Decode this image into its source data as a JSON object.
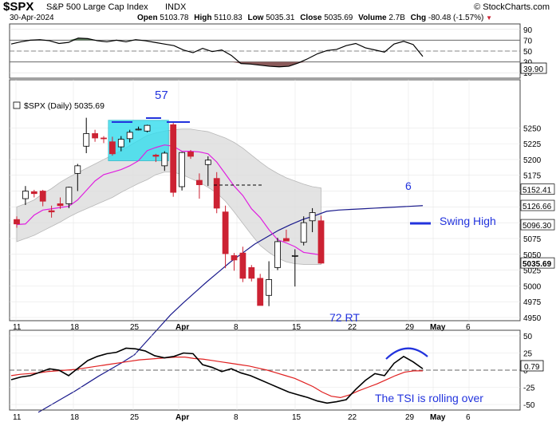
{
  "header": {
    "symbol": "$SPX",
    "name": "S&P 500 Large Cap Index",
    "exchange": "INDX",
    "date": "30-Apr-2024",
    "copyright": "© StockCharts.com",
    "open_label": "Open",
    "open": "5103.78",
    "high_label": "High",
    "high": "5110.83",
    "low_label": "Low",
    "low": "5035.31",
    "close_label": "Close",
    "close": "5035.69",
    "volume_label": "Volume",
    "volume": "2.7B",
    "chg_label": "Chg",
    "chg": "-80.48 (-1.57%)"
  },
  "colors": {
    "up": "#000000",
    "down": "#cc2233",
    "sma_short": "#e020e0",
    "sma_long": "#1a1a8c",
    "band_fill": "#dcdcdc",
    "annotation": "#2233dd",
    "tsi": "#000000",
    "tsi_signal": "#e02020",
    "rsi_overbought_fill": "#5a7a5a",
    "rsi_oversold_fill": "#8a5a5a",
    "highlight_box": "#33ddee"
  },
  "chart_data": [
    {
      "type": "line",
      "panel": "RSI",
      "y_ticks": [
        "90",
        "70",
        "50",
        "30",
        "10"
      ],
      "current_label": "39.90",
      "ylim": [
        0,
        100
      ],
      "overbought": 70,
      "oversold": 30,
      "series": [
        {
          "values": [
            63,
            67,
            70,
            71,
            69,
            64,
            66,
            74,
            73,
            69,
            67,
            70,
            67,
            71,
            69,
            66,
            63,
            60,
            52,
            47,
            55,
            49,
            52,
            42,
            27,
            26,
            24,
            22,
            21,
            22,
            28,
            36,
            45,
            51,
            53,
            60,
            64,
            56,
            52,
            48,
            63,
            68,
            62,
            40
          ]
        }
      ]
    },
    {
      "type": "candlestick",
      "panel": "Price",
      "label": "$SPX (Daily) 5035.69",
      "ylim": [
        4950,
        5275
      ],
      "y_ticks": [
        "5250",
        "5225",
        "5200",
        "5175",
        "5150",
        "5125",
        "5100",
        "5075",
        "5050",
        "5025",
        "5000",
        "4975",
        "4950"
      ],
      "price_labels": [
        "5152.41",
        "5126.66",
        "5096.30",
        "5035.69"
      ],
      "x_ticks": [
        "11",
        "18",
        "25",
        "Apr",
        "8",
        "15",
        "22",
        "29",
        "May",
        "6"
      ],
      "candles": [
        {
          "o": 5105,
          "h": 5110,
          "l": 5092,
          "c": 5098
        },
        {
          "o": 5138,
          "h": 5158,
          "l": 5128,
          "c": 5150
        },
        {
          "o": 5149,
          "h": 5152,
          "l": 5140,
          "c": 5146
        },
        {
          "o": 5150,
          "h": 5152,
          "l": 5126,
          "c": 5134
        },
        {
          "o": 5119,
          "h": 5127,
          "l": 5108,
          "c": 5117
        },
        {
          "o": 5130,
          "h": 5140,
          "l": 5122,
          "c": 5127
        },
        {
          "o": 5130,
          "h": 5157,
          "l": 5123,
          "c": 5156
        },
        {
          "o": 5178,
          "h": 5193,
          "l": 5150,
          "c": 5190
        },
        {
          "o": 5221,
          "h": 5266,
          "l": 5210,
          "c": 5241
        },
        {
          "o": 5241,
          "h": 5247,
          "l": 5228,
          "c": 5234
        },
        {
          "o": 5234,
          "h": 5237,
          "l": 5226,
          "c": 5233
        },
        {
          "o": 5228,
          "h": 5236,
          "l": 5206,
          "c": 5209
        },
        {
          "o": 5220,
          "h": 5237,
          "l": 5213,
          "c": 5232
        },
        {
          "o": 5233,
          "h": 5247,
          "l": 5227,
          "c": 5243
        },
        {
          "o": 5247,
          "h": 5252,
          "l": 5246,
          "c": 5248
        },
        {
          "o": 5245,
          "h": 5255,
          "l": 5243,
          "c": 5254
        },
        {
          "o": 5207,
          "h": 5209,
          "l": 5196,
          "c": 5205
        },
        {
          "o": 5190,
          "h": 5213,
          "l": 5182,
          "c": 5210
        },
        {
          "o": 5255,
          "h": 5260,
          "l": 5141,
          "c": 5148
        },
        {
          "o": 5157,
          "h": 5212,
          "l": 5151,
          "c": 5211
        },
        {
          "o": 5212,
          "h": 5215,
          "l": 5201,
          "c": 5205
        },
        {
          "o": 5167,
          "h": 5178,
          "l": 5138,
          "c": 5160
        },
        {
          "o": 5192,
          "h": 5205,
          "l": 5158,
          "c": 5199
        },
        {
          "o": 5170,
          "h": 5180,
          "l": 5115,
          "c": 5123
        },
        {
          "o": 5117,
          "h": 5127,
          "l": 5028,
          "c": 5051
        },
        {
          "o": 5048,
          "h": 5052,
          "l": 5024,
          "c": 5041
        },
        {
          "o": 5052,
          "h": 5062,
          "l": 5006,
          "c": 5012
        },
        {
          "o": 5029,
          "h": 5033,
          "l": 5007,
          "c": 5012
        },
        {
          "o": 5012,
          "h": 5019,
          "l": 4970,
          "c": 4969
        },
        {
          "o": 4985,
          "h": 5039,
          "l": 4968,
          "c": 5010
        },
        {
          "o": 5029,
          "h": 5076,
          "l": 5025,
          "c": 5070
        },
        {
          "o": 5075,
          "h": 5089,
          "l": 5073,
          "c": 5071
        },
        {
          "o": 5048,
          "h": 5058,
          "l": 4999,
          "c": 5048
        },
        {
          "o": 5069,
          "h": 5110,
          "l": 5064,
          "c": 5100
        },
        {
          "o": 5103,
          "h": 5123,
          "l": 5085,
          "c": 5116
        },
        {
          "o": 5103,
          "h": 5111,
          "l": 5035,
          "c": 5036
        }
      ],
      "sma_short": [
        5097,
        5098,
        5112,
        5120,
        5122,
        5124,
        5126,
        5136,
        5151,
        5166,
        5176,
        5180,
        5184,
        5190,
        5198,
        5214,
        5219,
        5223,
        5221,
        5213,
        5213,
        5212,
        5209,
        5196,
        5177,
        5158,
        5143,
        5122,
        5108,
        5089,
        5073,
        5068,
        5062,
        5053,
        5051,
        5049
      ],
      "sma_long": [
        4800,
        4811,
        4822,
        4833,
        4845,
        4857,
        4868,
        4879,
        4891,
        4912,
        4933,
        4954,
        4972,
        4989,
        5006,
        5022,
        5038,
        5052,
        5066,
        5077,
        5088,
        5097,
        5105,
        5111,
        5118,
        5120,
        5121,
        5122,
        5123,
        5124,
        5125,
        5126,
        5127
      ],
      "band_upper": [
        5125,
        5130,
        5136,
        5146,
        5154,
        5164,
        5172,
        5179,
        5186,
        5193,
        5200,
        5207,
        5214,
        5222,
        5230,
        5238,
        5242,
        5245,
        5247,
        5248,
        5248,
        5246,
        5244,
        5239,
        5234,
        5227,
        5218,
        5207,
        5196,
        5186,
        5178,
        5171,
        5166,
        5161,
        5157,
        5155
      ],
      "band_lower": [
        5070,
        5075,
        5080,
        5087,
        5094,
        5101,
        5109,
        5116,
        5122,
        5128,
        5134,
        5140,
        5148,
        5155,
        5162,
        5168,
        5176,
        5180,
        5180,
        5176,
        5170,
        5164,
        5156,
        5147,
        5134,
        5117,
        5099,
        5081,
        5064,
        5053,
        5044,
        5038,
        5035,
        5034,
        5034,
        5034
      ],
      "annotations": [
        "57",
        "6",
        "Swing High",
        "72 RT"
      ]
    },
    {
      "type": "line",
      "panel": "TSI",
      "y_ticks": [
        "50",
        "25",
        "0",
        "-25",
        "-50"
      ],
      "current_label": "0.79",
      "ylim": [
        -60,
        60
      ],
      "series": [
        {
          "values": [
            -14,
            -10,
            -8,
            -3,
            2,
            0,
            -8,
            3,
            14,
            20,
            24,
            26,
            32,
            31,
            28,
            21,
            18,
            20,
            25,
            24,
            8,
            4,
            -2,
            2,
            -4,
            -8,
            -14,
            -20,
            -26,
            -32,
            -36,
            -40,
            -45,
            -48,
            -46,
            -43,
            -28,
            -15,
            -5,
            -8,
            10,
            20,
            12,
            2
          ]
        },
        {
          "values": [
            -8,
            -6,
            -5,
            -4,
            -2,
            -1,
            0,
            1,
            3,
            5,
            7,
            9,
            11,
            13,
            15,
            16,
            17,
            18,
            19,
            19,
            17,
            16,
            14,
            12,
            10,
            8,
            6,
            3,
            0,
            -4,
            -8,
            -12,
            -18,
            -24,
            -32,
            -38,
            -40,
            -36,
            -30,
            -25,
            -20,
            -14,
            -8,
            -3,
            -1,
            -1
          ]
        }
      ],
      "annotations": [
        "The TSI is rolling over"
      ]
    }
  ]
}
